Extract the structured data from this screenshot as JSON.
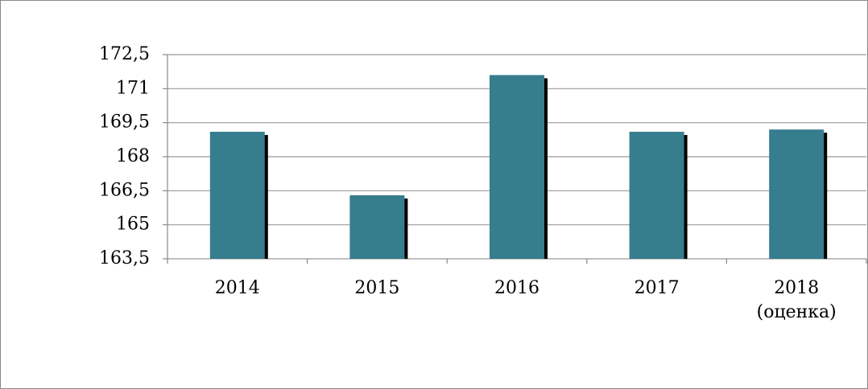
{
  "chart_data": {
    "type": "bar",
    "categories": [
      "2014",
      "2015",
      "2016",
      "2017",
      "2018 (оценка)"
    ],
    "values": [
      169.1,
      166.3,
      171.6,
      169.1,
      169.2
    ],
    "color": "#367d8e",
    "ylim": [
      163.5,
      172.5
    ],
    "yticks": [
      {
        "value": 163.5,
        "label": "163,5"
      },
      165,
      {
        "value": 166.5,
        "label": "166,5"
      },
      168,
      {
        "value": 169.5,
        "label": "169,5"
      },
      171,
      {
        "value": 172.5,
        "label": "172,5"
      }
    ],
    "grid": true
  }
}
